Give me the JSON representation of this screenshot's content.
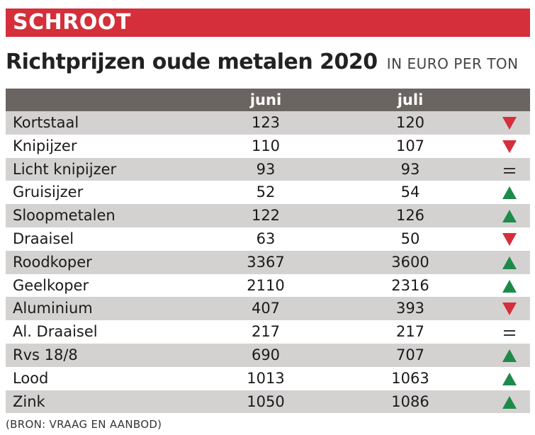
{
  "banner": "SCHROOT",
  "title": "Richtprijzen oude metalen 2020",
  "unit": "IN EURO PER TON",
  "source": "(BRON: VRAAG EN AANBOD)",
  "colors": {
    "banner": "#d42f3a",
    "header": "#6b6562",
    "shaded_row": "#d4d2d1",
    "down": "#d42f3a",
    "up": "#1e8a4a",
    "equal": "#333333"
  },
  "chart_data": {
    "type": "table",
    "columns": [
      "",
      "juni",
      "juli",
      ""
    ],
    "rows": [
      {
        "name": "Kortstaal",
        "juni": 123,
        "juli": 120,
        "trend": "down"
      },
      {
        "name": "Knipijzer",
        "juni": 110,
        "juli": 107,
        "trend": "down"
      },
      {
        "name": "Licht knipijzer",
        "juni": 93,
        "juli": 93,
        "trend": "equal"
      },
      {
        "name": "Gruisijzer",
        "juni": 52,
        "juli": 54,
        "trend": "up"
      },
      {
        "name": "Sloopmetalen",
        "juni": 122,
        "juli": 126,
        "trend": "up"
      },
      {
        "name": "Draaisel",
        "juni": 63,
        "juli": 50,
        "trend": "down"
      },
      {
        "name": "Roodkoper",
        "juni": 3367,
        "juli": 3600,
        "trend": "up"
      },
      {
        "name": "Geelkoper",
        "juni": 2110,
        "juli": 2316,
        "trend": "up"
      },
      {
        "name": "Aluminium",
        "juni": 407,
        "juli": 393,
        "trend": "down"
      },
      {
        "name": "Al. Draaisel",
        "juni": 217,
        "juli": 217,
        "trend": "equal"
      },
      {
        "name": "Rvs 18/8",
        "juni": 690,
        "juli": 707,
        "trend": "up"
      },
      {
        "name": "Lood",
        "juni": 1013,
        "juli": 1063,
        "trend": "up"
      },
      {
        "name": "Zink",
        "juni": 1050,
        "juli": 1086,
        "trend": "up"
      }
    ]
  }
}
